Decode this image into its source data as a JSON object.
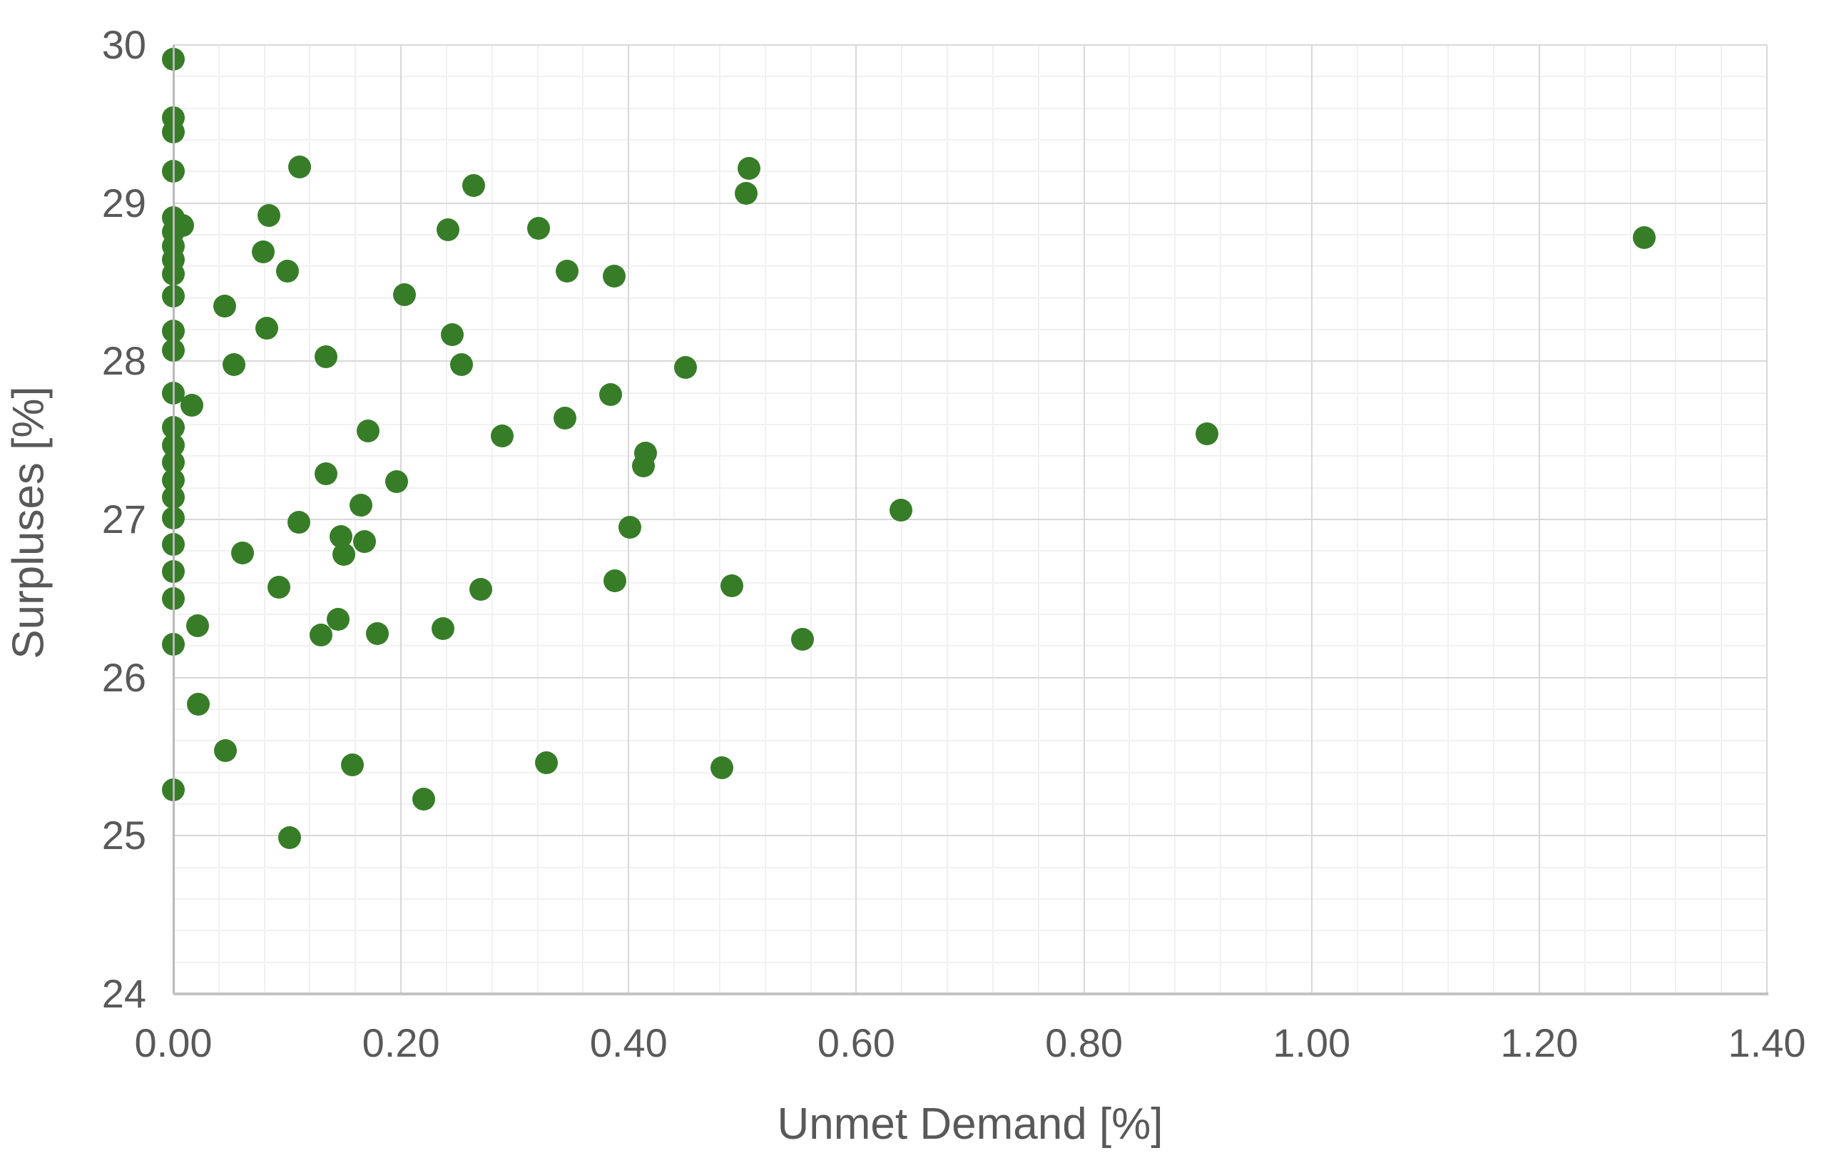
{
  "chart_data": {
    "type": "scatter",
    "title": "",
    "xlabel": "Unmet Demand [%]",
    "ylabel": "Surpluses [%]",
    "xlim": [
      0,
      1.4
    ],
    "ylim": [
      24,
      30
    ],
    "x_tick_step": 0.2,
    "x_minor_step": 0.04,
    "y_tick_step": 1,
    "y_minor_step": 0.2,
    "grid": true,
    "legend_position": "none",
    "marker_color": "#377d28",
    "marker_diameter_px": 32,
    "x_ticks": [
      "0.00",
      "0.20",
      "0.40",
      "0.60",
      "0.80",
      "1.00",
      "1.20",
      "1.40"
    ],
    "x_tick_values": [
      0,
      0.2,
      0.4,
      0.6,
      0.8,
      1.0,
      1.2,
      1.4
    ],
    "y_ticks": [
      "30",
      "29",
      "28",
      "27",
      "26",
      "25",
      "24"
    ],
    "y_tick_values": [
      30,
      29,
      28,
      27,
      26,
      25,
      24
    ],
    "points": [
      [
        0.0,
        29.91
      ],
      [
        0.0,
        29.54
      ],
      [
        0.0,
        29.45
      ],
      [
        0.0,
        29.2
      ],
      [
        0.0,
        28.91
      ],
      [
        0.008,
        28.86
      ],
      [
        0.0,
        28.82
      ],
      [
        0.0,
        28.73
      ],
      [
        0.0,
        28.64
      ],
      [
        0.0,
        28.55
      ],
      [
        0.0,
        28.41
      ],
      [
        0.0,
        28.19
      ],
      [
        0.0,
        28.07
      ],
      [
        0.0,
        27.8
      ],
      [
        0.016,
        27.72
      ],
      [
        0.0,
        27.58
      ],
      [
        0.0,
        27.47
      ],
      [
        0.0,
        27.36
      ],
      [
        0.0,
        27.25
      ],
      [
        0.0,
        27.14
      ],
      [
        0.0,
        27.01
      ],
      [
        0.0,
        26.84
      ],
      [
        0.0,
        26.67
      ],
      [
        0.0,
        26.5
      ],
      [
        0.0,
        26.21
      ],
      [
        0.0,
        25.29
      ],
      [
        0.045,
        28.35
      ],
      [
        0.053,
        27.98
      ],
      [
        0.021,
        26.33
      ],
      [
        0.061,
        26.79
      ],
      [
        0.022,
        25.83
      ],
      [
        0.046,
        25.54
      ],
      [
        0.084,
        28.92
      ],
      [
        0.079,
        28.69
      ],
      [
        0.1,
        28.57
      ],
      [
        0.082,
        28.21
      ],
      [
        0.111,
        29.23
      ],
      [
        0.134,
        28.03
      ],
      [
        0.203,
        28.42
      ],
      [
        0.241,
        28.83
      ],
      [
        0.264,
        29.11
      ],
      [
        0.245,
        28.17
      ],
      [
        0.253,
        27.98
      ],
      [
        0.321,
        28.84
      ],
      [
        0.346,
        28.57
      ],
      [
        0.171,
        27.56
      ],
      [
        0.289,
        27.53
      ],
      [
        0.344,
        27.64
      ],
      [
        0.134,
        27.29
      ],
      [
        0.196,
        27.24
      ],
      [
        0.165,
        27.09
      ],
      [
        0.11,
        26.98
      ],
      [
        0.093,
        26.57
      ],
      [
        0.147,
        26.89
      ],
      [
        0.168,
        26.86
      ],
      [
        0.15,
        26.78
      ],
      [
        0.13,
        26.27
      ],
      [
        0.145,
        26.37
      ],
      [
        0.179,
        26.28
      ],
      [
        0.237,
        26.31
      ],
      [
        0.27,
        26.56
      ],
      [
        0.157,
        25.45
      ],
      [
        0.22,
        25.23
      ],
      [
        0.102,
        24.99
      ],
      [
        0.328,
        25.46
      ],
      [
        0.387,
        28.54
      ],
      [
        0.384,
        27.79
      ],
      [
        0.388,
        26.61
      ],
      [
        0.401,
        26.95
      ],
      [
        0.415,
        27.42
      ],
      [
        0.413,
        27.34
      ],
      [
        0.45,
        27.96
      ],
      [
        0.503,
        29.06
      ],
      [
        0.506,
        29.22
      ],
      [
        0.491,
        26.58
      ],
      [
        0.482,
        25.43
      ],
      [
        0.553,
        26.24
      ],
      [
        0.639,
        27.06
      ],
      [
        0.908,
        27.54
      ],
      [
        1.292,
        28.78
      ]
    ]
  },
  "colors": {
    "background": "#ffffff",
    "marker": "#377d28",
    "major_gridline": "#d8d8d8",
    "minor_gridline": "#f1f1f1",
    "axis_line": "#b9b9b9",
    "label_text": "#595959"
  }
}
